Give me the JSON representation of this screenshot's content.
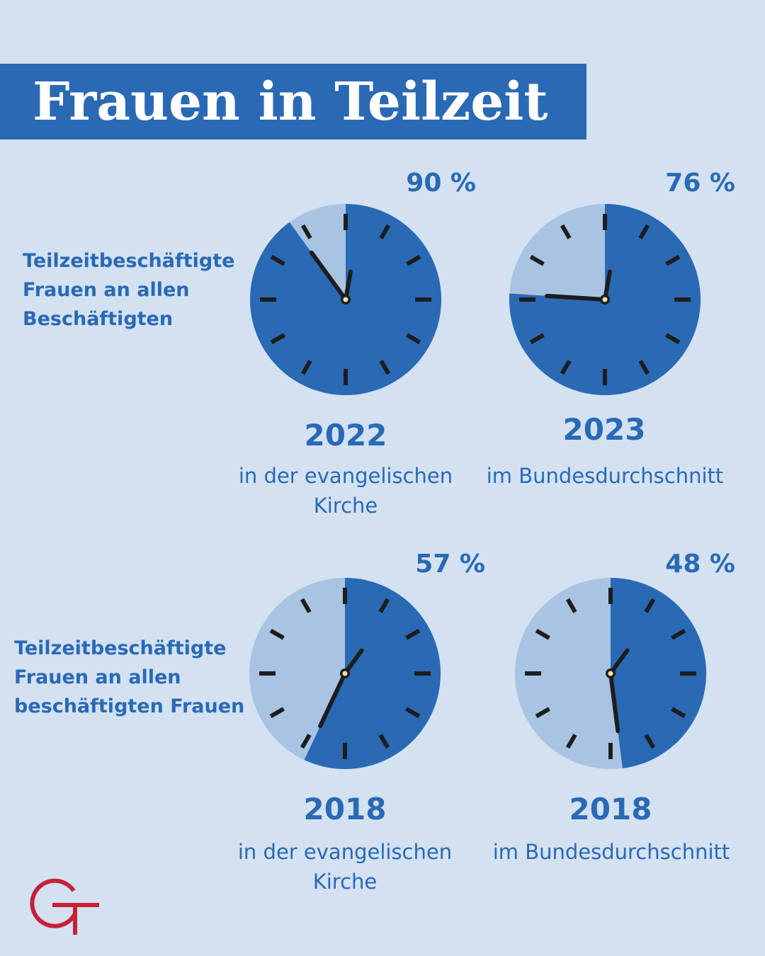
{
  "title": "Frauen in Teilzeit",
  "rows": [
    {
      "label": "Teilzeitbeschäftigte\nFrauen an allen\nBeschäftigten"
    },
    {
      "label": "Teilzeitbeschäftigte\nFrauen an allen\nbeschäftigten Frauen"
    }
  ],
  "chart_data": [
    {
      "type": "pie",
      "value_percent": 90,
      "value_label": "90 %",
      "year": "2022",
      "subtitle": "in der evangelischen\nKirche"
    },
    {
      "type": "pie",
      "value_percent": 76,
      "value_label": "76 %",
      "year": "2023",
      "subtitle": "im Bundesdurchschnitt"
    },
    {
      "type": "pie",
      "value_percent": 57,
      "value_label": "57 %",
      "year": "2018",
      "subtitle": "in der evangelischen\nKirche"
    },
    {
      "type": "pie",
      "value_percent": 48,
      "value_label": "48 %",
      "year": "2018",
      "subtitle": "im Bundesdurchschnitt"
    }
  ],
  "colors": {
    "background": "#d3e1f1",
    "accent": "#2a69b4",
    "remainder": "#a9c4e3",
    "ticks": "#1d1d1d",
    "logo": "#c8203a"
  },
  "logo": {
    "name": "logo-icon"
  }
}
